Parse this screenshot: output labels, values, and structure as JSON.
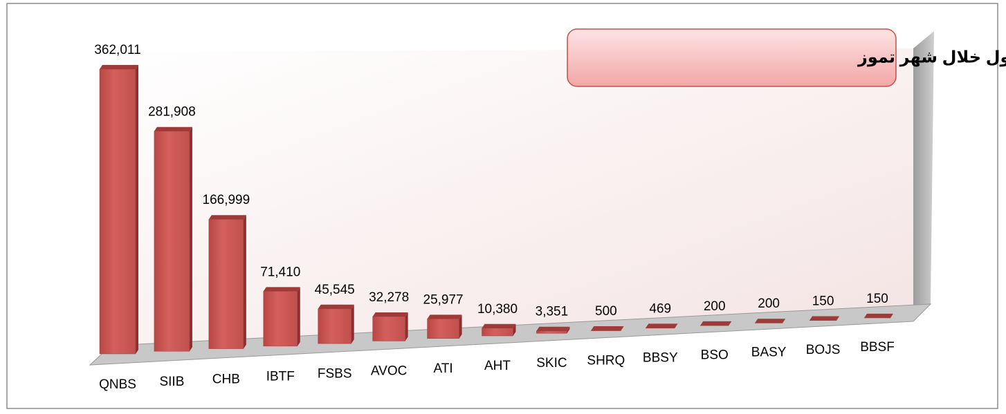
{
  "chart_data": {
    "type": "bar",
    "title": "حجم التداول  خلال شهر تموز",
    "categories": [
      "QNBS",
      "SIIB",
      "CHB",
      "IBTF",
      "FSBS",
      "AVOC",
      "ATI",
      "AHT",
      "SKIC",
      "SHRQ",
      "BBSY",
      "BSO",
      "BASY",
      "BOJS",
      "BBSF"
    ],
    "values": [
      362011,
      281908,
      166999,
      71410,
      45545,
      32278,
      25977,
      10380,
      3351,
      500,
      469,
      200,
      200,
      150,
      150
    ],
    "value_labels": [
      "362,011",
      "281,908",
      "166,999",
      "71,410",
      "45,545",
      "32,278",
      "25,977",
      "10,380",
      "3,351",
      "500",
      "469",
      "200",
      "200",
      "150",
      "150"
    ],
    "color": "#c0504d"
  }
}
